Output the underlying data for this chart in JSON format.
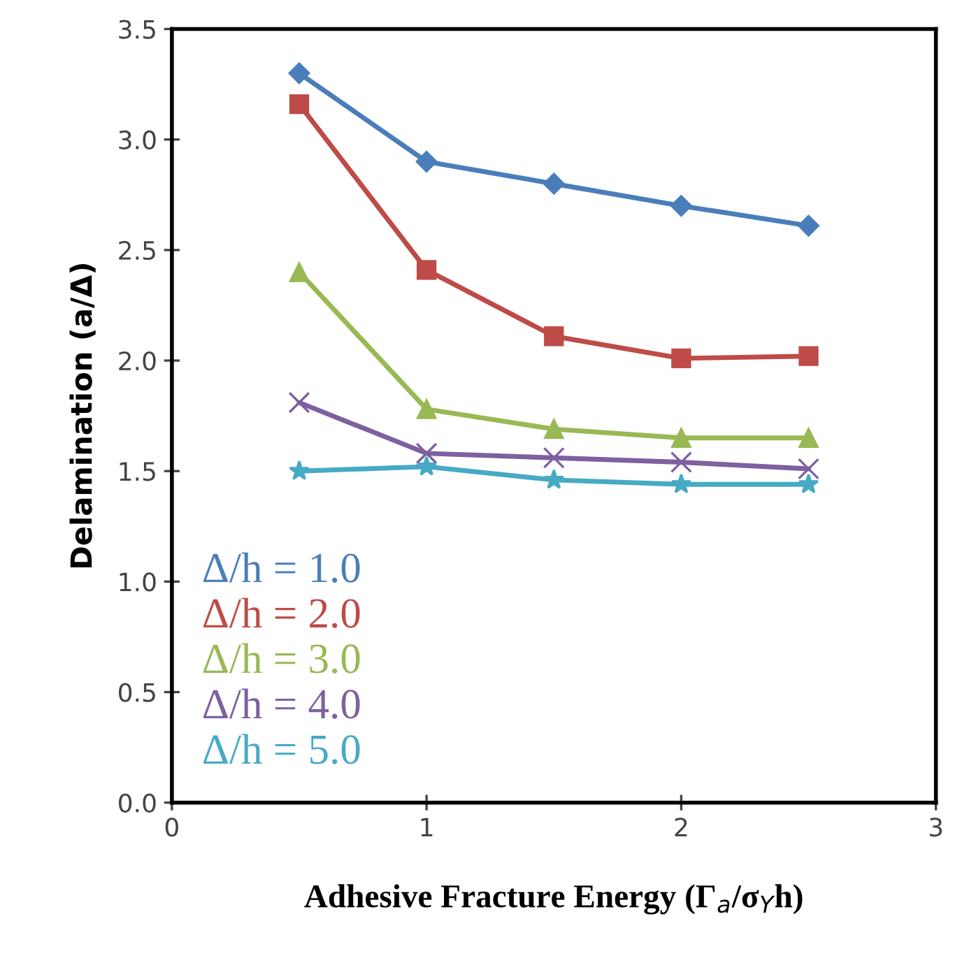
{
  "chart_data": {
    "type": "line",
    "xlabel": "Adhesive Fracture Energy (Γ$_{a}$/σ$_{Y}$h)",
    "ylabel": "Delamination (a/Δ)",
    "x": [
      0.5,
      1,
      1.5,
      2,
      2.5
    ],
    "series": [
      {
        "name": "Δ/h = 1.0",
        "color": "#4a7ebb",
        "marker": "diamond",
        "values": [
          3.3,
          2.9,
          2.8,
          2.7,
          2.61
        ]
      },
      {
        "name": "Δ/h = 2.0",
        "color": "#be4b48",
        "marker": "square",
        "values": [
          3.16,
          2.41,
          2.11,
          2.01,
          2.02
        ]
      },
      {
        "name": "Δ/h = 3.0",
        "color": "#98b954",
        "marker": "triangle",
        "values": [
          2.4,
          1.78,
          1.69,
          1.65,
          1.65
        ]
      },
      {
        "name": "Δ/h = 4.0",
        "color": "#7d60a0",
        "marker": "cross",
        "values": [
          1.81,
          1.58,
          1.56,
          1.54,
          1.51
        ]
      },
      {
        "name": "Δ/h = 5.0",
        "color": "#46aac5",
        "marker": "star",
        "values": [
          1.5,
          1.52,
          1.46,
          1.44,
          1.44
        ]
      }
    ],
    "xlim": [
      0,
      3
    ],
    "xticks": [
      0,
      1,
      2,
      3
    ],
    "ylim": [
      0,
      3.5
    ],
    "yticks": [
      {
        "value": 0,
        "label": "0.0"
      },
      {
        "value": 0.5,
        "label": "0.5"
      },
      {
        "value": 1,
        "label": "1.0"
      },
      {
        "value": 1.5,
        "label": "1.5"
      },
      {
        "value": 2,
        "label": "2.0"
      },
      {
        "value": 2.5,
        "label": "2.5"
      },
      {
        "value": 3,
        "label": "3.0"
      },
      {
        "value": 3.5,
        "label": "3.5"
      }
    ],
    "grid": false,
    "legend": "bottom left",
    "line_style": "solid"
  }
}
